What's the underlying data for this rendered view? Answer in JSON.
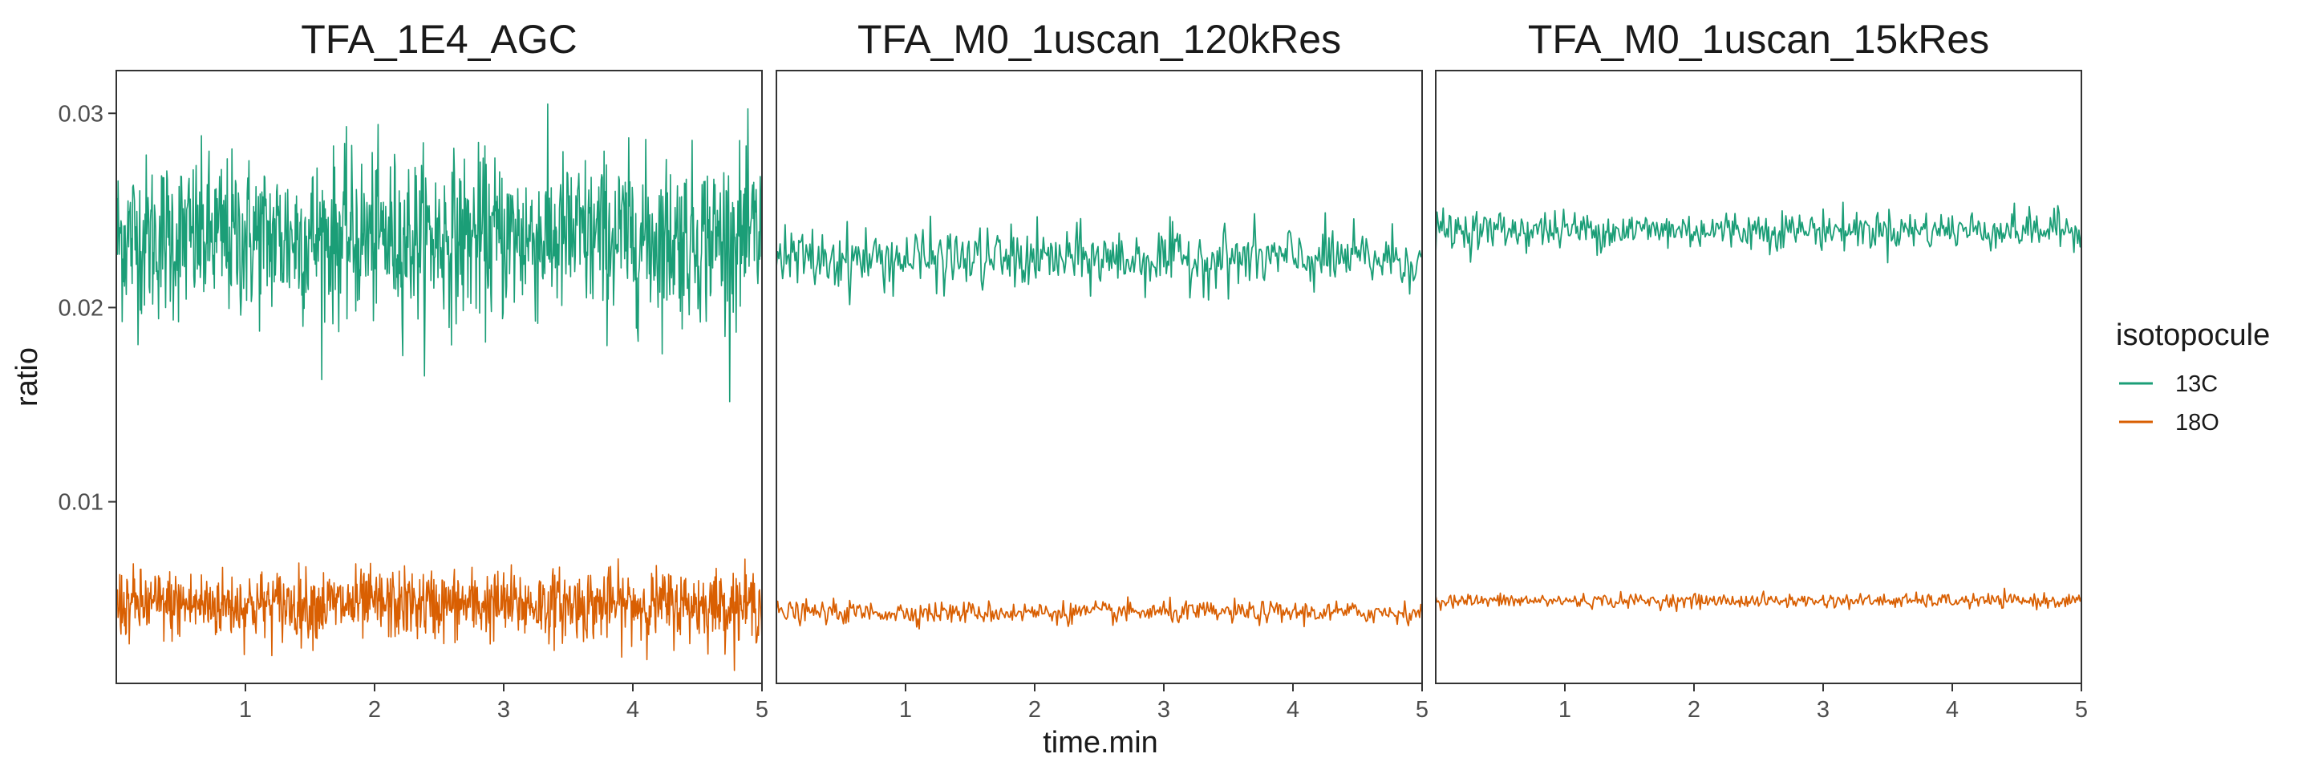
{
  "chart_data": {
    "type": "line",
    "xlabel": "time.min",
    "ylabel": "ratio",
    "xlim": [
      0,
      5
    ],
    "ylim": [
      0.00065,
      0.0322
    ],
    "x_ticks": [
      "1",
      "2",
      "3",
      "4",
      "5"
    ],
    "y_ticks": [
      "0.01",
      "0.02",
      "0.03"
    ],
    "grid": false,
    "legend": {
      "title": "isotopocule",
      "position": "right",
      "entries": [
        "13C",
        "18O"
      ]
    },
    "panels": [
      {
        "title": "TFA_1E4_AGC",
        "series": [
          {
            "name": "13C",
            "color": "#1b9e77",
            "mean": 0.0236,
            "noise_sd": 0.0021,
            "x_start": 0,
            "x_end": 5
          },
          {
            "name": "18O",
            "color": "#d95f02",
            "mean": 0.0047,
            "noise_sd": 0.0009,
            "x_start": 0,
            "x_end": 5
          }
        ]
      },
      {
        "title": "TFA_M0_1uscan_120kRes",
        "series": [
          {
            "name": "13C",
            "color": "#1b9e77",
            "mean": 0.0225,
            "noise_sd": 0.0008,
            "x_start": 0,
            "x_end": 5
          },
          {
            "name": "18O",
            "color": "#d95f02",
            "mean": 0.0043,
            "noise_sd": 0.00028,
            "x_start": 0,
            "x_end": 5
          }
        ]
      },
      {
        "title": "TFA_M0_1uscan_15kRes",
        "series": [
          {
            "name": "13C",
            "color": "#1b9e77",
            "mean": 0.024,
            "noise_sd": 0.0005,
            "x_start": 0,
            "x_end": 5
          },
          {
            "name": "18O",
            "color": "#d95f02",
            "mean": 0.0049,
            "noise_sd": 0.00018,
            "x_start": 0,
            "x_end": 5
          }
        ]
      }
    ]
  }
}
